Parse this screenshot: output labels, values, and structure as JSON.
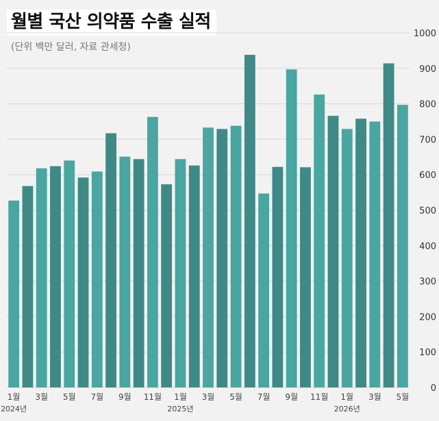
{
  "title": "월별 국산 의약품 수출 실적",
  "subtitle": "(단위 백만 달러, 자료 관세청)",
  "colors": {
    "background": "#f2f2f2",
    "bar_light": "#4aa6a1",
    "bar_dark": "#3f8a86",
    "grid": "#d6d6d6"
  },
  "chart_data": {
    "type": "bar",
    "categories": [
      "2024-01",
      "2024-02",
      "2024-03",
      "2024-04",
      "2024-05",
      "2024-06",
      "2024-07",
      "2024-08",
      "2024-09",
      "2024-10",
      "2024-11",
      "2024-12",
      "2025-01",
      "2025-02",
      "2025-03",
      "2025-04",
      "2025-05",
      "2025-06",
      "2025-07",
      "2025-08",
      "2025-09",
      "2025-10",
      "2025-11",
      "2025-12",
      "2026-01",
      "2026-02",
      "2026-03",
      "2026-04",
      "2026-05"
    ],
    "values": [
      527,
      568,
      618,
      624,
      640,
      592,
      609,
      717,
      651,
      644,
      763,
      573,
      644,
      626,
      733,
      729,
      738,
      938,
      547,
      622,
      897,
      621,
      826,
      766,
      729,
      758,
      750,
      914,
      797
    ],
    "ylim": [
      0,
      1000
    ],
    "yticks": [
      "0",
      "100",
      "200",
      "300",
      "400",
      "500",
      "600",
      "700",
      "800",
      "900",
      "1000"
    ],
    "xticks": [
      {
        "index": 0,
        "label": "1월"
      },
      {
        "index": 2,
        "label": "3월"
      },
      {
        "index": 4,
        "label": "5월"
      },
      {
        "index": 6,
        "label": "7월"
      },
      {
        "index": 8,
        "label": "9월"
      },
      {
        "index": 10,
        "label": "11월"
      },
      {
        "index": 12,
        "label": "1월"
      },
      {
        "index": 14,
        "label": "3월"
      },
      {
        "index": 16,
        "label": "5월"
      },
      {
        "index": 18,
        "label": "7월"
      },
      {
        "index": 20,
        "label": "9월"
      },
      {
        "index": 22,
        "label": "11월"
      },
      {
        "index": 24,
        "label": "1월"
      },
      {
        "index": 26,
        "label": "3월"
      },
      {
        "index": 28,
        "label": "5월"
      }
    ],
    "year_labels": [
      {
        "index": 0,
        "label": "2024년"
      },
      {
        "index": 12,
        "label": "2025년"
      },
      {
        "index": 24,
        "label": "2026년"
      }
    ],
    "grid": true
  }
}
